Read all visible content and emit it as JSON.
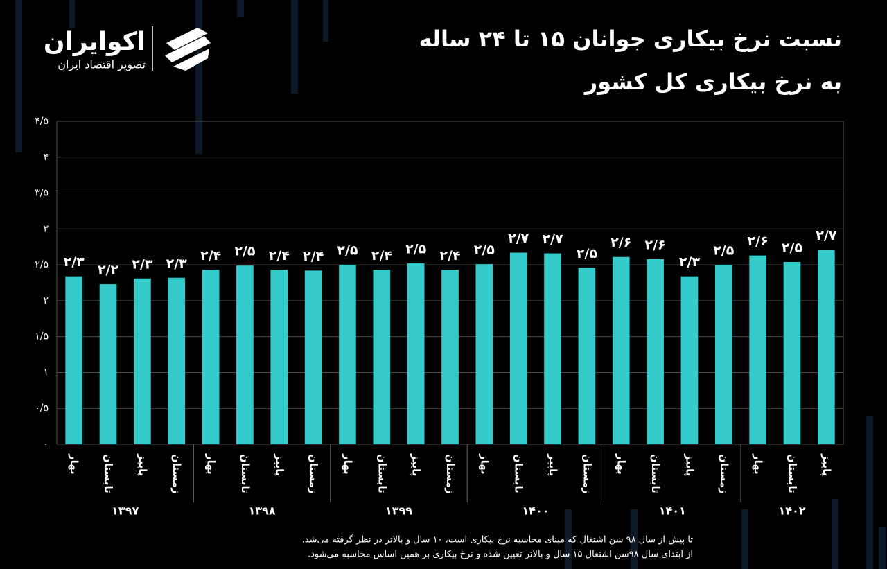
{
  "logo": {
    "name": "اکوایران",
    "tagline": "تصویر اقتصاد ایران"
  },
  "chart_data": {
    "type": "bar",
    "title": [
      "نسبت نرخ بیکاری جوانان ۱۵ تا ۲۴ ساله",
      "به نرخ بیکاری کل کشور"
    ],
    "color": "#35cbcb",
    "grid": true,
    "ylim": [
      0,
      4.5
    ],
    "yticks": [
      {
        "value": 0,
        "label": "۰"
      },
      {
        "value": 0.5,
        "label": "۰/۵"
      },
      {
        "value": 1,
        "label": "۱"
      },
      {
        "value": 1.5,
        "label": "۱/۵"
      },
      {
        "value": 2,
        "label": "۲"
      },
      {
        "value": 2.5,
        "label": "۲/۵"
      },
      {
        "value": 3,
        "label": "۳"
      },
      {
        "value": 3.5,
        "label": "۳/۵"
      },
      {
        "value": 4,
        "label": "۴"
      },
      {
        "value": 4.5,
        "label": "۴/۵"
      }
    ],
    "groups": [
      {
        "label": "۱۳۹۷",
        "categories": [
          "بهار",
          "تابستان",
          "پاییز",
          "زمستان"
        ],
        "values": [
          2.34,
          2.23,
          2.31,
          2.32
        ],
        "value_labels": [
          "۲/۳",
          "۲/۲",
          "۲/۳",
          "۲/۳"
        ]
      },
      {
        "label": "۱۳۹۸",
        "categories": [
          "بهار",
          "تابستان",
          "پاییز",
          "زمستان"
        ],
        "values": [
          2.43,
          2.49,
          2.43,
          2.42
        ],
        "value_labels": [
          "۲/۴",
          "۲/۵",
          "۲/۴",
          "۲/۴"
        ]
      },
      {
        "label": "۱۳۹۹",
        "categories": [
          "بهار",
          "تابستان",
          "پاییز",
          "زمستان"
        ],
        "values": [
          2.5,
          2.43,
          2.52,
          2.43
        ],
        "value_labels": [
          "۲/۵",
          "۲/۴",
          "۲/۵",
          "۲/۴"
        ]
      },
      {
        "label": "۱۴۰۰",
        "categories": [
          "بهار",
          "تابستان",
          "پاییز",
          "زمستان"
        ],
        "values": [
          2.51,
          2.67,
          2.66,
          2.46
        ],
        "value_labels": [
          "۲/۵",
          "۲/۷",
          "۲/۷",
          "۲/۵"
        ]
      },
      {
        "label": "۱۴۰۱",
        "categories": [
          "بهار",
          "تابستان",
          "پاییز",
          "زمستان"
        ],
        "values": [
          2.61,
          2.58,
          2.34,
          2.5
        ],
        "value_labels": [
          "۲/۶",
          "۲/۶",
          "۲/۳",
          "۲/۵"
        ]
      },
      {
        "label": "۱۴۰۲",
        "categories": [
          "بهار",
          "تابستان",
          "پاییز"
        ],
        "values": [
          2.63,
          2.54,
          2.71
        ],
        "value_labels": [
          "۲/۶",
          "۲/۵",
          "۲/۷"
        ]
      }
    ],
    "notes": [
      "تا پیش از سال ۹۸ سن اشتغال که مبنای محاسبه نرخ بیکاری است، ۱۰ سال و بالاتر در نظر گرفته می‌شد.",
      "از ابتدای سال ۹۸سن اشتغال ۱۵ سال و بالاتر تعیین شده و نرخ بیکاری بر همین اساس محاسبه می‌شود."
    ]
  }
}
